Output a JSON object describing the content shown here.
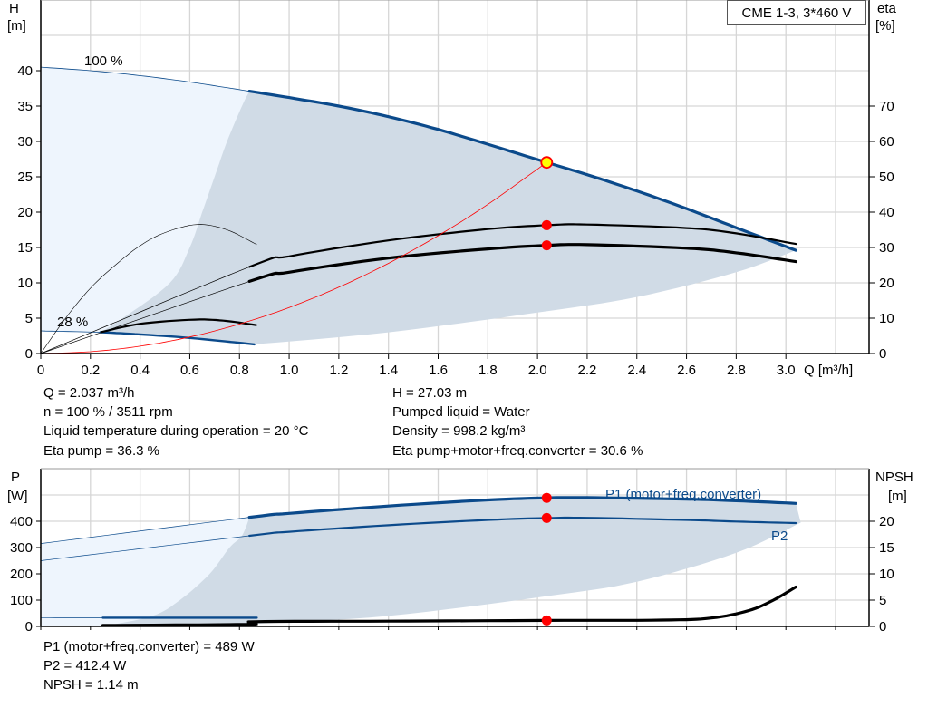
{
  "model_label": "CME 1-3, 3*460 V",
  "chart_data": [
    {
      "type": "line",
      "ylabel": "H",
      "yunit": "[m]",
      "y2label": "eta",
      "y2unit": "[%]",
      "xlabel": "Q [m³/h]",
      "xlim": [
        0,
        3.335
      ],
      "ylim": [
        0,
        50
      ],
      "y2lim": [
        0,
        100
      ],
      "xticks": [
        "0",
        "0.2",
        "0.4",
        "0.6",
        "0.8",
        "1.0",
        "1.2",
        "1.4",
        "1.6",
        "1.8",
        "2.0",
        "2.2",
        "2.4",
        "2.6",
        "2.8",
        "3.0"
      ],
      "yticks": [
        "0",
        "5",
        "10",
        "15",
        "20",
        "25",
        "30",
        "35",
        "40"
      ],
      "y2ticks": [
        "0",
        "10",
        "20",
        "30",
        "40",
        "50",
        "60",
        "70"
      ],
      "grid": true,
      "annotations": [
        "100 %",
        "28 %"
      ],
      "series": {
        "head_100": {
          "x": [
            0,
            0.2,
            0.4,
            0.6,
            0.84,
            1.0,
            1.2,
            1.4,
            1.6,
            1.8,
            2.037,
            2.2,
            2.4,
            2.6,
            2.8,
            3.04
          ],
          "y": [
            40.5,
            40,
            39.3,
            38.4,
            37.1,
            36.2,
            35,
            33.5,
            31.7,
            29.6,
            27.03,
            25.3,
            23,
            20.5,
            17.8,
            14.6
          ],
          "thick_from": 0.84
        },
        "head_28": {
          "x": [
            0,
            0.24,
            0.4,
            0.6,
            0.86
          ],
          "y": [
            3.2,
            3.0,
            2.7,
            2.2,
            1.3
          ],
          "thick_from": 0.24
        },
        "eta_pump": {
          "x": [
            0,
            0.84,
            1.0,
            1.4,
            1.8,
            2.037,
            2.2,
            2.6,
            2.8,
            3.04
          ],
          "y": [
            0,
            24.5,
            27.5,
            32,
            35.2,
            36.3,
            36.5,
            35.5,
            34,
            31
          ],
          "thick_from": 0.84,
          "unit": "eta"
        },
        "eta_total": {
          "x": [
            0,
            0.84,
            1.0,
            1.4,
            1.8,
            2.037,
            2.2,
            2.6,
            2.8,
            3.04
          ],
          "y": [
            0,
            20.4,
            23,
            27,
            29.6,
            30.6,
            30.8,
            29.8,
            28.5,
            26
          ],
          "thick_from": 0.84,
          "unit": "eta"
        },
        "eta_pump_100_low": {
          "x": [
            0,
            0.1,
            0.2,
            0.3,
            0.4,
            0.5,
            0.63,
            0.75,
            0.87
          ],
          "y": [
            0,
            10,
            18.5,
            25,
            30.5,
            34.2,
            36.5,
            35,
            30.8
          ],
          "unit": "eta"
        },
        "eta_28": {
          "x": [
            0.24,
            0.4,
            0.62,
            0.75,
            0.87
          ],
          "y": [
            6,
            8.4,
            9.6,
            9.2,
            8
          ],
          "unit": "eta"
        },
        "system_curve": {
          "x": [
            0,
            0.2,
            0.4,
            0.6,
            0.8,
            1.0,
            1.2,
            1.4,
            1.6,
            1.8,
            2.037
          ],
          "y": [
            0,
            0.26,
            1.04,
            2.34,
            4.17,
            6.51,
            9.38,
            12.76,
            16.67,
            21.1,
            27.03
          ]
        }
      },
      "operating_point": {
        "Q": 2.037,
        "H": 27.03,
        "eta_pump": 36.3,
        "eta_total": 30.6
      },
      "colors": {
        "head": "#0b4a8b",
        "eta": "#000000",
        "system": "#ff0000",
        "region_light": "#eef5fd",
        "region_dark": "#d0dbe6",
        "point": "#ff0000",
        "duty_point": "#ffff00"
      }
    },
    {
      "type": "line",
      "ylabel": "P",
      "yunit": "[W]",
      "y2label": "NPSH",
      "y2unit": "[m]",
      "xlim": [
        0,
        3.335
      ],
      "ylim": [
        0,
        600
      ],
      "y2lim": [
        0,
        30
      ],
      "yticks": [
        "0",
        "100",
        "200",
        "300",
        "400"
      ],
      "y2ticks": [
        "0",
        "5",
        "10",
        "15",
        "20"
      ],
      "grid": true,
      "series_labels": [
        "P1 (motor+freq.converter)",
        "P2"
      ],
      "series": {
        "p1": {
          "x": [
            0,
            0.84,
            1.0,
            1.4,
            1.8,
            2.037,
            2.2,
            2.6,
            2.8,
            3.04
          ],
          "y": [
            315,
            415,
            430,
            458,
            481,
            489,
            490,
            484,
            478,
            468
          ],
          "thick_from": 0.84
        },
        "p2": {
          "x": [
            0,
            0.84,
            1.0,
            1.4,
            1.8,
            2.037,
            2.2,
            2.6,
            2.8,
            3.04
          ],
          "y": [
            250,
            345,
            360,
            385,
            405,
            412.4,
            413,
            405,
            399,
            393
          ],
          "thick_from": 0.84
        },
        "p1_28": {
          "x": [
            0,
            0.25,
            0.87
          ],
          "y": [
            32,
            33,
            33
          ],
          "thick_from": 0.25
        },
        "npsh": {
          "x": [
            0.25,
            0.84,
            0.86,
            1.4,
            2.037,
            2.5,
            2.7,
            2.85,
            2.95,
            3.04
          ],
          "y": [
            0.2,
            0.4,
            0.9,
            1.0,
            1.14,
            1.2,
            1.6,
            3,
            5,
            7.5
          ],
          "thick_from": 0.25,
          "unit": "npsh"
        }
      },
      "operating_point": {
        "Q": 2.037,
        "P1": 489,
        "P2": 412.4,
        "NPSH": 1.14
      }
    }
  ],
  "info_top": {
    "q": "Q = 2.037 m³/h",
    "n": "n = 100 % / 3511 rpm",
    "temp": "Liquid temperature during operation = 20 °C",
    "eta_pump": "Eta pump = 36.3 %",
    "h": "H = 27.03 m",
    "liquid": "Pumped liquid = Water",
    "density": "Density = 998.2 kg/m³",
    "eta_total": "Eta pump+motor+freq.converter = 30.6 %"
  },
  "info_bottom": {
    "p1": "P1 (motor+freq.converter) = 489 W",
    "p2": "P2 = 412.4 W",
    "npsh": "NPSH = 1.14 m"
  }
}
